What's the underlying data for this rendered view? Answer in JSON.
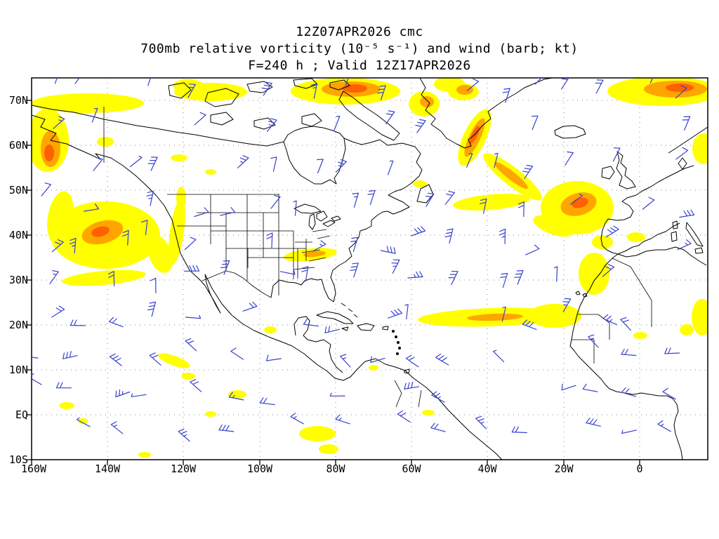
{
  "title": {
    "line1": "12Z07APR2026 cmc",
    "line2": "700mb relative vorticity (10⁻⁵ s⁻¹) and wind (barb; kt)",
    "line3": "F=240 h ; Valid 12Z17APR2026"
  },
  "axes": {
    "lat_labels": [
      "70N",
      "60N",
      "50N",
      "40N",
      "30N",
      "20N",
      "10N",
      "EQ",
      "10S"
    ],
    "lon_labels": [
      "160W",
      "140W",
      "120W",
      "100W",
      "80W",
      "60W",
      "40W",
      "20W",
      "0"
    ]
  },
  "colors": {
    "background": "#ffffff",
    "coastline": "#000000",
    "gridline": "#8a8a8a",
    "frame": "#000000",
    "wind_barb": "#3742cc",
    "vorticity_yellow": "#ffff00",
    "vorticity_orange": "#ffa500",
    "vorticity_deep_orange": "#ff6000"
  },
  "chart_data": {
    "type": "heatmap",
    "subtype": "geographic weather chart: 700mb relative vorticity shading with wind barbs",
    "model": "cmc",
    "init_time": "12Z07APR2026",
    "valid_time": "12Z17APR2026",
    "forecast_hour": 240,
    "level": "700mb",
    "field": "relative vorticity (10⁻⁵ s⁻¹)",
    "wind": {
      "symbol": "barb",
      "units": "kt",
      "color": "blue"
    },
    "x_axis": {
      "label": "longitude",
      "ticks": [
        "160W",
        "140W",
        "120W",
        "100W",
        "80W",
        "60W",
        "40W",
        "20W",
        "0"
      ],
      "range": [
        "160W",
        "~18E"
      ],
      "grid": "dotted"
    },
    "y_axis": {
      "label": "latitude",
      "ticks": [
        "70N",
        "60N",
        "50N",
        "40N",
        "30N",
        "20N",
        "10N",
        "EQ",
        "10S"
      ],
      "range": [
        "10S",
        "~75N"
      ],
      "grid": "dotted"
    },
    "legend": "none shown; yellow = moderate positive vorticity, orange = strong, dark orange = strongest",
    "features": [
      {
        "region": "Gulf of Alaska / left edge 55-70N",
        "shading": "yellow with orange core"
      },
      {
        "region": "Arctic coast band near 70N, 120-150W and 95-115W",
        "shading": "yellow"
      },
      {
        "region": "North of Hudson Bay / Baffin ~75N 80W",
        "shading": "yellow with strong orange core"
      },
      {
        "region": "West + East Greenland coast",
        "shading": "yellow with orange streaks"
      },
      {
        "region": "Streak SE of Cape Farewell toward 50N 35W",
        "shading": "yellow/orange"
      },
      {
        "region": "NE Atlantic ~50N 20W (west of Ireland)",
        "shading": "large yellow cell, orange/dark-orange core"
      },
      {
        "region": "Top right near Iceland-Norway ~75N 0-10W",
        "shading": "yellow with orange core"
      },
      {
        "region": "NE Pacific cyclone ~40N 140W",
        "shading": "large spiral yellow region, orange + dark-orange core"
      },
      {
        "region": "US west coast 30-45N",
        "shading": "thin yellow coastal streak"
      },
      {
        "region": "Central US ~38N 95W",
        "shading": "short yellow/orange streak"
      },
      {
        "region": "Subtropical Atlantic band 20-25N, 65W to NW Africa",
        "shading": "long thin yellow band"
      },
      {
        "region": "NW Africa and Iberia",
        "shading": "scattered yellow cells"
      },
      {
        "region": "Tropics/ITCZ 10S-10N",
        "shading": "scattered small yellow cells"
      }
    ],
    "barbs_note": "blue wind barbs plotted on ~5 degree grid over entire domain, mostly 5-25 kt"
  }
}
